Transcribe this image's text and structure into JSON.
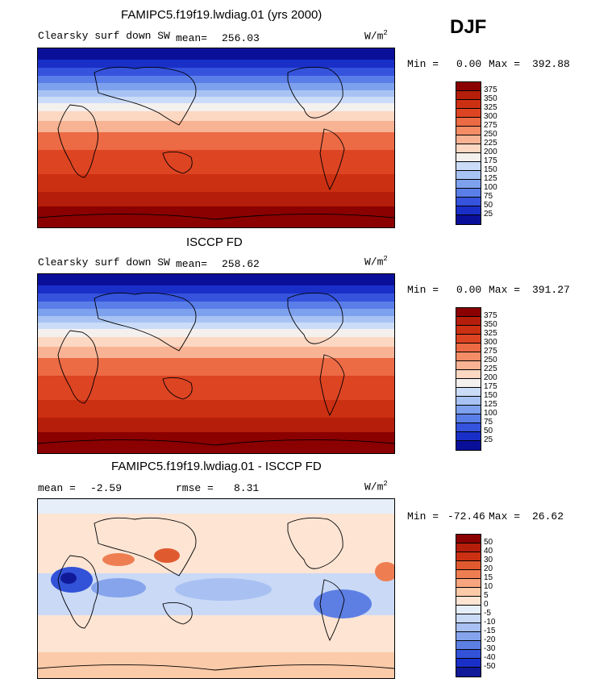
{
  "season": "DJF",
  "units": "W/m",
  "units_sup": "2",
  "panels": [
    {
      "title": "FAMIPC5.f19f19.lwdiag.01 (yrs 2000)",
      "variable": "Clearsky surf down SW",
      "mean_label": "mean=",
      "mean_value": "256.03",
      "min_label": "Min =",
      "min_value": "0.00",
      "max_label": "Max =",
      "max_value": "392.88",
      "colorbar_labels": [
        "375",
        "350",
        "325",
        "300",
        "275",
        "250",
        "225",
        "200",
        "175",
        "150",
        "125",
        "100",
        "75",
        "50",
        "25"
      ]
    },
    {
      "title": "ISCCP FD",
      "variable": "Clearsky surf down SW",
      "mean_label": "mean=",
      "mean_value": "258.62",
      "min_label": "Min =",
      "min_value": "0.00",
      "max_label": "Max =",
      "max_value": "391.27",
      "colorbar_labels": [
        "375",
        "350",
        "325",
        "300",
        "275",
        "250",
        "225",
        "200",
        "175",
        "150",
        "125",
        "100",
        "75",
        "50",
        "25"
      ]
    },
    {
      "title": "FAMIPC5.f19f19.lwdiag.01 - ISCCP FD",
      "mean_label": "mean =",
      "mean_value": "-2.59",
      "rmse_label": "rmse =",
      "rmse_value": "8.31",
      "min_label": "Min =",
      "min_value": "-72.46",
      "max_label": "Max =",
      "max_value": "26.62",
      "colorbar_labels": [
        "50",
        "40",
        "30",
        "20",
        "15",
        "10",
        "5",
        "0",
        "-5",
        "-10",
        "-15",
        "-20",
        "-30",
        "-40",
        "-50"
      ]
    }
  ],
  "colors": {
    "abs_scale": [
      "#8b0000",
      "#b41e0a",
      "#cc3012",
      "#dd4422",
      "#ec6a44",
      "#f48c66",
      "#f8b394",
      "#fcd7c2",
      "#f4f0ee",
      "#cbdcf8",
      "#a8c3f3",
      "#7ea1ee",
      "#5a7ee8",
      "#3553dd",
      "#1a2fc8",
      "#0a0f9a"
    ],
    "diff_scale": [
      "#8b0000",
      "#b41e0a",
      "#cc3012",
      "#e05a30",
      "#ee7e52",
      "#f6a57e",
      "#fbcaa8",
      "#fde4d3",
      "#e6eefa",
      "#c9d9f6",
      "#a9c1f2",
      "#86a4ec",
      "#5d7fe4",
      "#3252d8",
      "#101a98"
    ]
  }
}
